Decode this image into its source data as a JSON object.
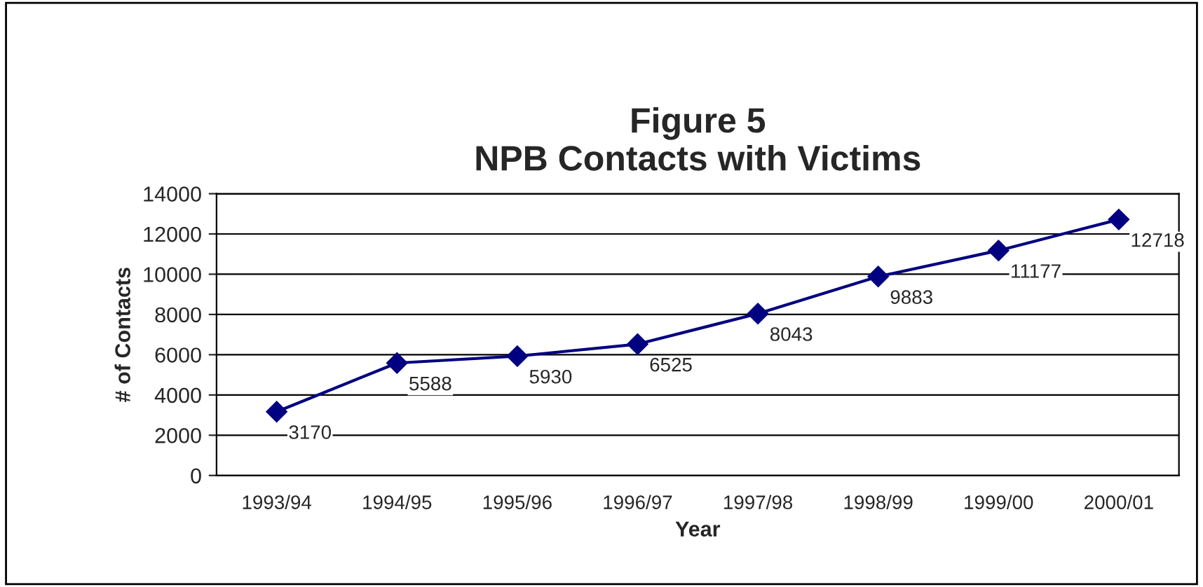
{
  "chart_data": {
    "type": "line",
    "title": "Figure 5\nNPB Contacts with Victims",
    "xlabel": "Year",
    "ylabel": "# of Contacts",
    "categories": [
      "1993/94",
      "1994/95",
      "1995/96",
      "1996/97",
      "1997/98",
      "1998/99",
      "1999/00",
      "2000/01"
    ],
    "series": [
      {
        "color": "#000080",
        "values": [
          3170,
          5588,
          5930,
          6525,
          8043,
          9883,
          11177,
          12718
        ]
      }
    ],
    "ylim": [
      0,
      14000
    ],
    "yticks": [
      0,
      2000,
      4000,
      6000,
      8000,
      10000,
      12000,
      14000
    ],
    "grid": "y",
    "legend": false,
    "marker": "diamond",
    "line_style": "solid",
    "data_labels": true
  }
}
